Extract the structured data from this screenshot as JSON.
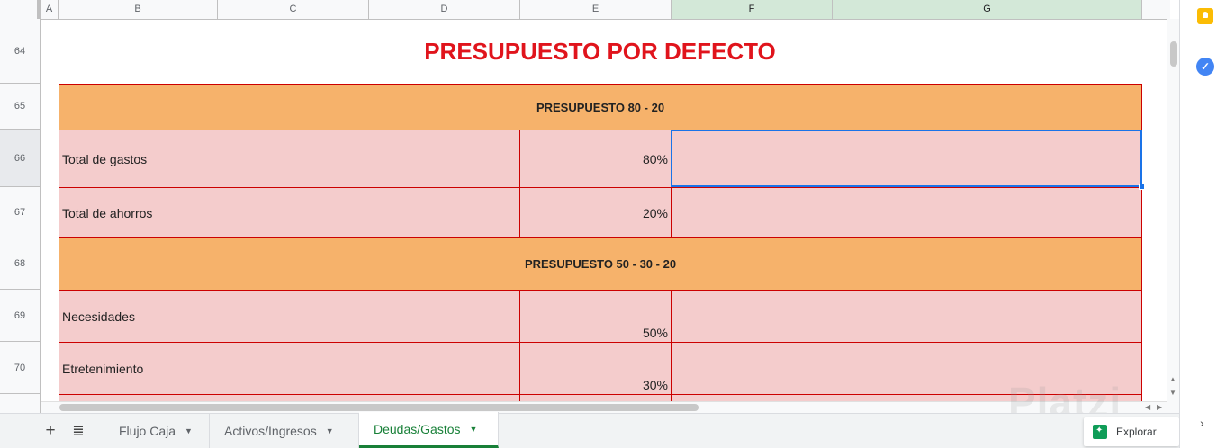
{
  "columns": [
    "A",
    "B",
    "C",
    "D",
    "E",
    "F",
    "G"
  ],
  "rows": [
    "64",
    "65",
    "66",
    "67",
    "68",
    "69",
    "70"
  ],
  "title": "PRESUPUESTO POR DEFECTO",
  "sections": {
    "s1": {
      "header": "PRESUPUESTO 80 - 20",
      "items": [
        {
          "label": "Total de gastos",
          "pct": "80%"
        },
        {
          "label": "Total de ahorros",
          "pct": "20%"
        }
      ]
    },
    "s2": {
      "header": "PRESUPUESTO 50 - 30 - 20",
      "items": [
        {
          "label": "Necesidades",
          "pct": "50%"
        },
        {
          "label": "Etretenimiento",
          "pct": "30%"
        }
      ]
    }
  },
  "sheet_tabs": [
    {
      "label": "Flujo Caja"
    },
    {
      "label": "Activos/Ingresos"
    },
    {
      "label": "Deudas/Gastos"
    }
  ],
  "active_tab": "Deudas/Gastos",
  "explore_label": "Explorar",
  "watermark": "Platzi",
  "icons": [
    "add-sheet-icon",
    "all-sheets-icon",
    "keep-icon",
    "tasks-icon",
    "explore-icon",
    "chevron-right-icon"
  ],
  "colors": {
    "title": "#e0141c",
    "band": "#f6b26b",
    "cell": "#f4cccc",
    "border": "#cc0000",
    "selection": "#1a73e8",
    "active_tab": "#188038"
  }
}
